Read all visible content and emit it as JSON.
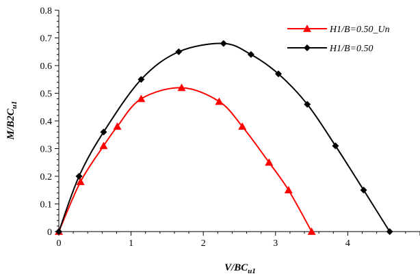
{
  "chart_data": {
    "type": "line",
    "title": "",
    "xlabel": {
      "main": "V/BC",
      "sub": "u1"
    },
    "ylabel": {
      "main": "M/B2C",
      "sub": "u1"
    },
    "xlim": [
      0,
      5
    ],
    "ylim": [
      0,
      0.8
    ],
    "x_ticks": [
      "0",
      "1",
      "2",
      "3",
      "4"
    ],
    "y_ticks": [
      "0",
      "0.1",
      "0.2",
      "0.3",
      "0.4",
      "0.5",
      "0.6",
      "0.7",
      "0.8"
    ],
    "grid": false,
    "legend_position": "top-right",
    "series": [
      {
        "name": "H1/B=0.50_Un",
        "color": "#ff0000",
        "marker": "triangle",
        "x": [
          0,
          0.3,
          0.62,
          0.81,
          1.14,
          1.7,
          2.22,
          2.54,
          2.91,
          3.18,
          3.5
        ],
        "y": [
          0,
          0.18,
          0.31,
          0.38,
          0.48,
          0.52,
          0.47,
          0.38,
          0.25,
          0.15,
          0
        ]
      },
      {
        "name": "H1/B=0.50",
        "color": "#000000",
        "marker": "diamond",
        "x": [
          0,
          0.28,
          0.62,
          1.14,
          1.66,
          2.28,
          2.66,
          3.04,
          3.44,
          3.83,
          4.22,
          4.58
        ],
        "y": [
          0,
          0.2,
          0.36,
          0.55,
          0.65,
          0.68,
          0.64,
          0.57,
          0.46,
          0.31,
          0.15,
          0
        ]
      }
    ]
  }
}
